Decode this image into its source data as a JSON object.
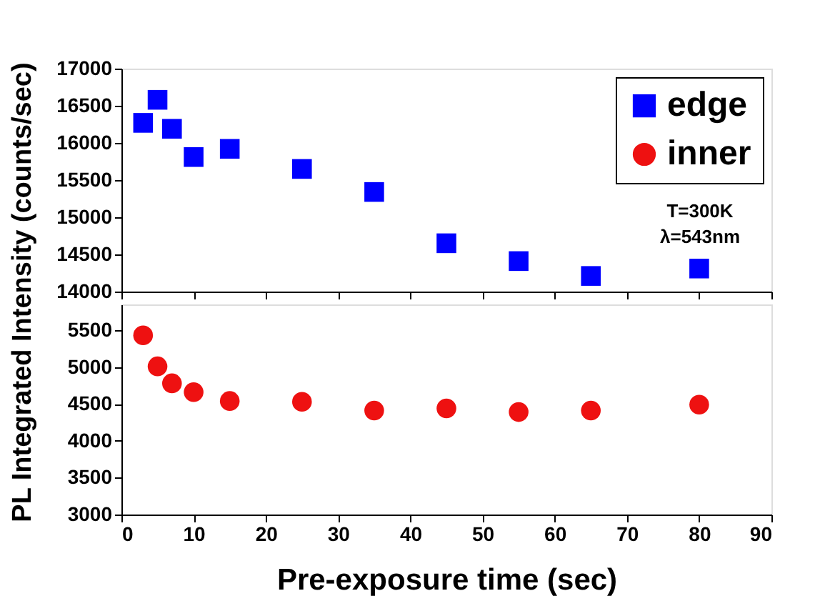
{
  "chart_data": [
    {
      "type": "scatter",
      "ylabel": "PL Integrated Intensity (counts/sec)",
      "x": [
        3,
        5,
        7,
        10,
        15,
        25,
        35,
        45,
        55,
        65,
        80
      ],
      "xlim": [
        0,
        90
      ],
      "xticks": [
        0,
        10,
        20,
        30,
        40,
        50,
        60,
        70,
        80,
        90
      ],
      "ylim": [
        14000,
        17000
      ],
      "yticks": [
        14000,
        14500,
        15000,
        15500,
        16000,
        16500,
        17000
      ],
      "tick_labels": "y",
      "marker": "square",
      "legend": "top right",
      "grid": false,
      "annotations": [
        "T=300K",
        "λ=543nm"
      ],
      "series": [
        {
          "name": "edge",
          "color": "#0000ff",
          "values": [
            16270,
            16580,
            16190,
            15810,
            15920,
            15650,
            15340,
            14650,
            14410,
            14210,
            14310
          ]
        }
      ]
    },
    {
      "type": "scatter",
      "xlabel": "Pre-exposure time (sec)",
      "x": [
        3,
        5,
        7,
        10,
        15,
        25,
        35,
        45,
        55,
        65,
        80
      ],
      "xlim": [
        0,
        90
      ],
      "xticks": [
        0,
        10,
        20,
        30,
        40,
        50,
        60,
        70,
        80,
        90
      ],
      "ylim": [
        3000,
        5850
      ],
      "yticks": [
        3000,
        3500,
        4000,
        4500,
        5000,
        5500
      ],
      "marker": "circle",
      "grid": false,
      "series": [
        {
          "name": "inner",
          "color": "#ee1111",
          "values": [
            5430,
            5010,
            4780,
            4660,
            4540,
            4530,
            4410,
            4440,
            4390,
            4410,
            4490
          ]
        }
      ]
    }
  ]
}
